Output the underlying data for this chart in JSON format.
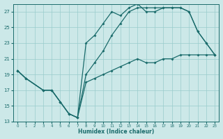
{
  "xlabel": "Humidex (Indice chaleur)",
  "bg_color": "#cce8e8",
  "grid_color": "#99cccc",
  "line_color": "#1a6b6b",
  "xlim": [
    -0.5,
    23.5
  ],
  "ylim": [
    13,
    28
  ],
  "xticks": [
    0,
    1,
    2,
    3,
    4,
    5,
    6,
    7,
    8,
    9,
    10,
    11,
    12,
    13,
    14,
    15,
    16,
    17,
    18,
    19,
    20,
    21,
    22,
    23
  ],
  "yticks": [
    13,
    15,
    17,
    19,
    21,
    23,
    25,
    27
  ],
  "line1_x": [
    0,
    1,
    3,
    4,
    5,
    6,
    7,
    8,
    9,
    10,
    11,
    12,
    13,
    14,
    15,
    16,
    17,
    18,
    19,
    20,
    21,
    22,
    23
  ],
  "line1_y": [
    19.5,
    18.5,
    17.0,
    17.0,
    15.5,
    14.0,
    13.5,
    23.0,
    24.0,
    25.5,
    27.0,
    26.5,
    27.5,
    28.0,
    27.0,
    27.0,
    27.5,
    27.5,
    27.5,
    27.0,
    24.5,
    23.0,
    21.5
  ],
  "line2_x": [
    0,
    1,
    3,
    4,
    5,
    6,
    7,
    8,
    9,
    10,
    11,
    12,
    13,
    14,
    15,
    16,
    17,
    18,
    19,
    20,
    21,
    22,
    23
  ],
  "line2_y": [
    19.5,
    18.5,
    17.0,
    17.0,
    15.5,
    14.0,
    13.5,
    19.0,
    20.5,
    22.0,
    24.0,
    25.5,
    27.0,
    27.5,
    27.5,
    27.5,
    27.5,
    27.5,
    27.5,
    27.0,
    24.5,
    23.0,
    21.5
  ],
  "line3_x": [
    0,
    1,
    3,
    4,
    5,
    6,
    7,
    8,
    9,
    10,
    11,
    12,
    13,
    14,
    15,
    16,
    17,
    18,
    19,
    20,
    21,
    22,
    23
  ],
  "line3_y": [
    19.5,
    18.5,
    17.0,
    17.0,
    15.5,
    14.0,
    13.5,
    18.0,
    18.5,
    19.0,
    19.5,
    20.0,
    20.5,
    21.0,
    20.5,
    20.5,
    21.0,
    21.0,
    21.5,
    21.5,
    21.5,
    21.5,
    21.5
  ]
}
